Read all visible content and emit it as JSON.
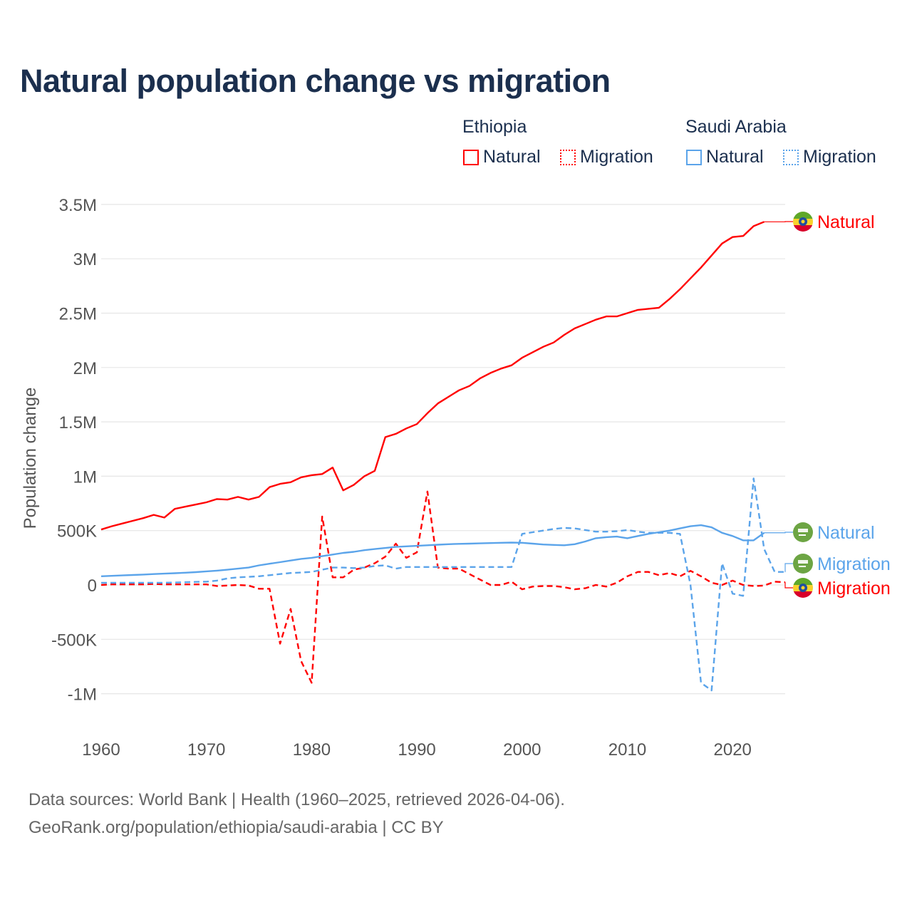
{
  "title": "Natural population change vs migration",
  "legend": {
    "groups": [
      {
        "name": "Ethiopia",
        "items": [
          "Natural",
          "Migration"
        ],
        "color": "#ff0000"
      },
      {
        "name": "Saudi Arabia",
        "items": [
          "Natural",
          "Migration"
        ],
        "color": "#5ba4ea"
      }
    ]
  },
  "footer": {
    "line1": "Data sources: World Bank | Health (1960–2025, retrieved 2026-04-06).",
    "line2": "GeoRank.org/population/ethiopia/saudi-arabia | CC BY"
  },
  "chart_data": {
    "type": "line",
    "title": "Natural population change vs migration",
    "ylabel": "Population change",
    "xlabel": "",
    "xlim": [
      1960,
      2025
    ],
    "ylim": [
      -1250000,
      3500000
    ],
    "x_ticks": [
      1960,
      1970,
      1980,
      1990,
      2000,
      2010,
      2020
    ],
    "x_tick_labels": [
      "1960",
      "1970",
      "1980",
      "1990",
      "2000",
      "2010",
      "2020"
    ],
    "y_ticks": [
      -1000000,
      -500000,
      0,
      500000,
      1000000,
      1500000,
      2000000,
      2500000,
      3000000,
      3500000
    ],
    "y_tick_labels": [
      "-1M",
      "-500K",
      "0",
      "500K",
      "1M",
      "1.5M",
      "2M",
      "2.5M",
      "3M",
      "3.5M"
    ],
    "grid": true,
    "series": [
      {
        "name": "Ethiopia Natural",
        "end_label": "Natural",
        "country": "Ethiopia",
        "color": "#ff0000",
        "dash": false,
        "start": 1960,
        "values": [
          510000,
          540000,
          565000,
          590000,
          615000,
          645000,
          620000,
          700000,
          720000,
          740000,
          760000,
          790000,
          785000,
          810000,
          785000,
          810000,
          900000,
          930000,
          945000,
          990000,
          1010000,
          1020000,
          1080000,
          870000,
          920000,
          1000000,
          1050000,
          1360000,
          1390000,
          1440000,
          1480000,
          1580000,
          1670000,
          1730000,
          1790000,
          1830000,
          1900000,
          1950000,
          1990000,
          2020000,
          2090000,
          2140000,
          2190000,
          2230000,
          2300000,
          2360000,
          2400000,
          2440000,
          2470000,
          2470000,
          2500000,
          2530000,
          2540000,
          2550000,
          2630000,
          2720000,
          2820000,
          2920000,
          3030000,
          3140000,
          3200000,
          3210000,
          3300000,
          3340000
        ]
      },
      {
        "name": "Ethiopia Migration",
        "end_label": "Migration",
        "country": "Ethiopia",
        "color": "#ff0000",
        "dash": true,
        "start": 1960,
        "values": [
          0,
          5000,
          5000,
          5000,
          5000,
          10000,
          5000,
          5000,
          5000,
          5000,
          5000,
          -10000,
          -5000,
          0,
          -5000,
          -35000,
          -35000,
          -540000,
          -220000,
          -700000,
          -900000,
          630000,
          70000,
          70000,
          140000,
          160000,
          200000,
          260000,
          380000,
          250000,
          300000,
          860000,
          160000,
          150000,
          150000,
          100000,
          50000,
          0,
          0,
          30000,
          -40000,
          -15000,
          -10000,
          -10000,
          -20000,
          -40000,
          -30000,
          0,
          -15000,
          20000,
          80000,
          120000,
          120000,
          90000,
          110000,
          80000,
          130000,
          80000,
          20000,
          0,
          40000,
          0,
          -10000,
          -5000,
          30000,
          25000
        ]
      },
      {
        "name": "Saudi Arabia Natural",
        "end_label": "Natural",
        "country": "Saudi Arabia",
        "color": "#5ba4ea",
        "dash": false,
        "start": 1960,
        "values": [
          80000,
          84000,
          88000,
          92000,
          96000,
          100000,
          104000,
          108000,
          113000,
          118000,
          125000,
          132000,
          140000,
          150000,
          160000,
          180000,
          195000,
          210000,
          225000,
          240000,
          250000,
          265000,
          280000,
          295000,
          305000,
          320000,
          330000,
          340000,
          350000,
          355000,
          360000,
          365000,
          370000,
          375000,
          378000,
          380000,
          383000,
          385000,
          388000,
          390000,
          388000,
          380000,
          372000,
          368000,
          365000,
          375000,
          400000,
          430000,
          440000,
          445000,
          430000,
          450000,
          470000,
          485000,
          500000,
          520000,
          540000,
          550000,
          530000,
          480000,
          450000,
          410000,
          410000,
          480000
        ]
      },
      {
        "name": "Saudi Arabia Migration",
        "end_label": "Migration",
        "country": "Saudi Arabia",
        "color": "#5ba4ea",
        "dash": true,
        "start": 1960,
        "values": [
          20000,
          20000,
          20000,
          20000,
          20000,
          20000,
          20000,
          22000,
          25000,
          28000,
          30000,
          40000,
          60000,
          70000,
          75000,
          80000,
          90000,
          100000,
          110000,
          115000,
          120000,
          140000,
          160000,
          160000,
          155000,
          160000,
          175000,
          180000,
          150000,
          165000,
          165000,
          165000,
          165000,
          165000,
          165000,
          165000,
          165000,
          165000,
          165000,
          165000,
          470000,
          485000,
          500000,
          515000,
          525000,
          520000,
          505000,
          490000,
          490000,
          495000,
          505000,
          490000,
          480000,
          480000,
          480000,
          470000,
          0,
          -900000,
          -970000,
          200000,
          -80000,
          -100000,
          980000,
          330000,
          120000,
          120000
        ]
      }
    ]
  }
}
